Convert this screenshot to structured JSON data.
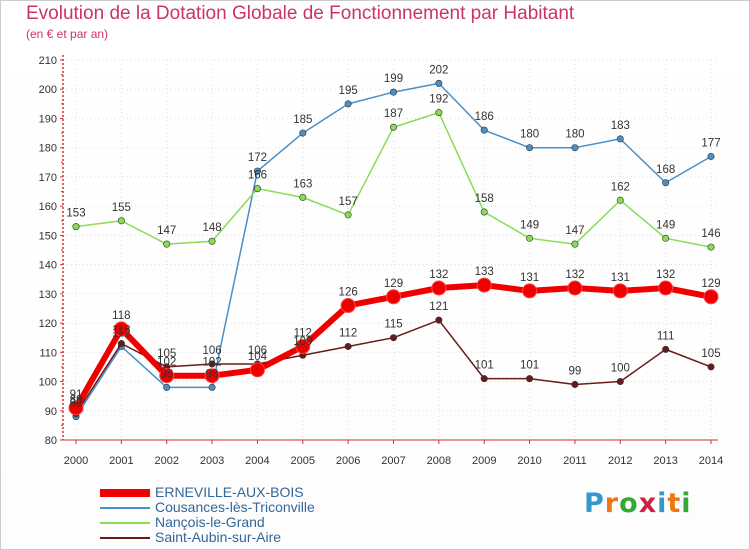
{
  "title": "Evolution de la Dotation Globale de Fonctionnement par Habitant",
  "subtitle": "(en € et par an)",
  "logo": "Proxiti",
  "chart_data": {
    "type": "line",
    "title": "Evolution de la Dotation Globale de Fonctionnement par Habitant",
    "subtitle": "(en € et par an)",
    "xlabel": "",
    "ylabel": "",
    "ylim": [
      80,
      210
    ],
    "yticks": [
      80,
      90,
      100,
      110,
      120,
      130,
      140,
      150,
      160,
      170,
      180,
      190,
      200,
      210
    ],
    "grid": true,
    "legend_position": "bottom-left",
    "x": [
      "2000",
      "2001",
      "2002",
      "2003",
      "2004",
      "2005",
      "2006",
      "2007",
      "2008",
      "2009",
      "2010",
      "2011",
      "2012",
      "2013",
      "2014"
    ],
    "series": [
      {
        "name": "Cousances-lès-Triconville",
        "color": "#4a90c8",
        "values": [
          88,
          112,
          98,
          98,
          172,
          185,
          195,
          199,
          202,
          186,
          180,
          180,
          183,
          168,
          177
        ]
      },
      {
        "name": "Nançois-le-Grand",
        "color": "#88dd55",
        "values": [
          153,
          155,
          147,
          148,
          166,
          163,
          157,
          187,
          192,
          158,
          149,
          147,
          162,
          149,
          146
        ]
      },
      {
        "name": "Saint-Aubin-sur-Aire",
        "color": "#6b1a1a",
        "values": [
          89,
          113,
          105,
          106,
          106,
          109,
          112,
          115,
          121,
          101,
          101,
          99,
          100,
          111,
          105
        ]
      },
      {
        "name": "ERNEVILLE-AUX-BOIS",
        "color": "#ee0000",
        "values": [
          91,
          118,
          102,
          102,
          104,
          112,
          126,
          129,
          132,
          133,
          131,
          132,
          131,
          132,
          129
        ]
      }
    ],
    "legend_order": [
      "ERNEVILLE-AUX-BOIS",
      "Cousances-lès-Triconville",
      "Nançois-le-Grand",
      "Saint-Aubin-sur-Aire"
    ]
  }
}
